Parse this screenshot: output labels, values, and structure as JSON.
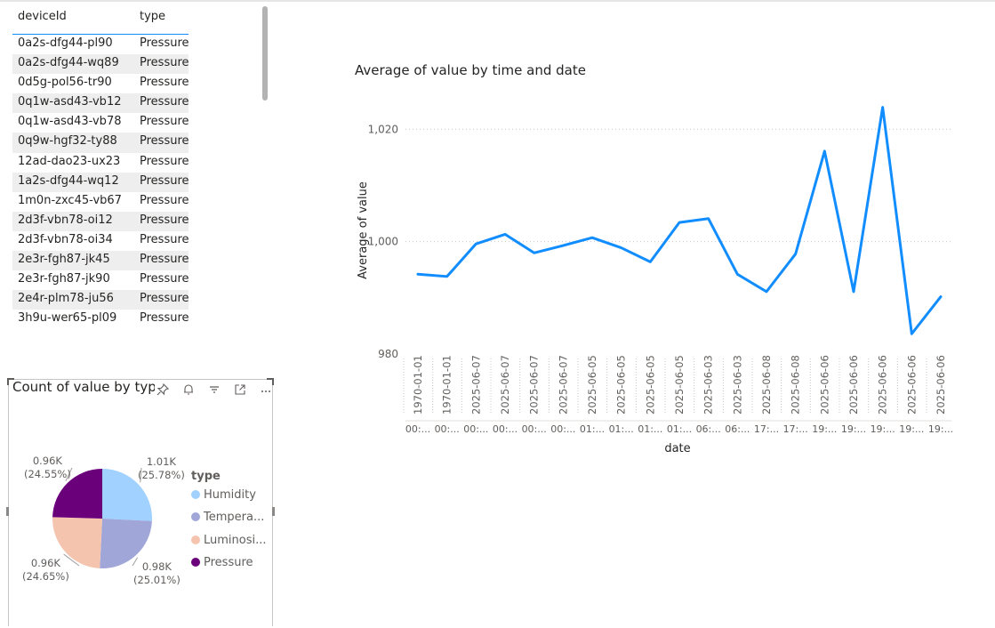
{
  "table": {
    "columns": [
      "deviceId",
      "type"
    ],
    "rows": [
      [
        "0a2s-dfg44-pl90",
        "Pressure"
      ],
      [
        "0a2s-dfg44-wq89",
        "Pressure"
      ],
      [
        "0d5g-pol56-tr90",
        "Pressure"
      ],
      [
        "0q1w-asd43-vb12",
        "Pressure"
      ],
      [
        "0q1w-asd43-vb78",
        "Pressure"
      ],
      [
        "0q9w-hgf32-ty88",
        "Pressure"
      ],
      [
        "12ad-dao23-ux23",
        "Pressure"
      ],
      [
        "1a2s-dfg44-wq12",
        "Pressure"
      ],
      [
        "1m0n-zxc45-vb67",
        "Pressure"
      ],
      [
        "2d3f-vbn78-oi12",
        "Pressure"
      ],
      [
        "2d3f-vbn78-oi34",
        "Pressure"
      ],
      [
        "2e3r-fgh87-jk45",
        "Pressure"
      ],
      [
        "2e3r-fgh87-jk90",
        "Pressure"
      ],
      [
        "2e4r-plm78-ju56",
        "Pressure"
      ],
      [
        "3h9u-wer65-pl09",
        "Pressure"
      ]
    ]
  },
  "pie": {
    "title": "Count of value by typ",
    "header_icons": [
      "pin-icon",
      "bell-icon",
      "filter-icon",
      "focus-mode-icon",
      "more-options-icon"
    ],
    "legend_title": "type",
    "legend": [
      {
        "label": "Humidity",
        "color": "#a0d1ff"
      },
      {
        "label": "Tempera...",
        "color": "#a0a6d8"
      },
      {
        "label": "Luminosi...",
        "color": "#f5c4af"
      },
      {
        "label": "Pressure",
        "color": "#6b007b"
      }
    ]
  },
  "chart_data": [
    {
      "type": "pie",
      "title": "Count of value by typ",
      "slices": [
        {
          "name": "Humidity",
          "value": 1.01,
          "percent": 25.78,
          "label": "1.01K",
          "pct_label": "(25.78%)",
          "color": "#a0d1ff"
        },
        {
          "name": "Temperature",
          "value": 0.98,
          "percent": 25.01,
          "label": "0.98K",
          "pct_label": "(25.01%)",
          "color": "#a0a6d8"
        },
        {
          "name": "Luminosity",
          "value": 0.96,
          "percent": 24.65,
          "label": "0.96K",
          "pct_label": "(24.65%)",
          "color": "#f5c4af"
        },
        {
          "name": "Pressure",
          "value": 0.96,
          "percent": 24.55,
          "label": "0.96K",
          "pct_label": "(24.55%)",
          "color": "#6b007b"
        }
      ]
    },
    {
      "type": "line",
      "title": "Average of value by time and date",
      "xlabel": "date",
      "ylabel": "Average of value",
      "ylim": [
        980,
        1024
      ],
      "yticks": [
        980,
        1000,
        1020
      ],
      "ytick_labels": [
        "980",
        "1,000",
        "1,020"
      ],
      "grid": true,
      "color": "#118dff",
      "x_dates": [
        "1970-01-01",
        "1970-01-01",
        "2025-06-07",
        "2025-06-07",
        "2025-06-07",
        "2025-06-07",
        "2025-06-05",
        "2025-06-05",
        "2025-06-05",
        "2025-06-05",
        "2025-06-03",
        "2025-06-03",
        "2025-06-08",
        "2025-06-08",
        "2025-06-06",
        "2025-06-06",
        "2025-06-06",
        "2025-06-06",
        "2025-06-06"
      ],
      "x_times": [
        "00:...",
        "00:...",
        "00:...",
        "00:...",
        "00:...",
        "00:...",
        "01:...",
        "01:...",
        "01:...",
        "01:...",
        "06:...",
        "06:...",
        "17:...",
        "17:...",
        "19:...",
        "19:...",
        "19:...",
        "19:...",
        "19:..."
      ],
      "values": [
        994.2,
        993.8,
        999.6,
        1001.3,
        998.0,
        999.3,
        1000.7,
        998.9,
        996.4,
        1003.4,
        1004.1,
        994.2,
        991.1,
        997.8,
        1016.1,
        991.1,
        1023.9,
        983.6,
        990.2
      ]
    }
  ]
}
